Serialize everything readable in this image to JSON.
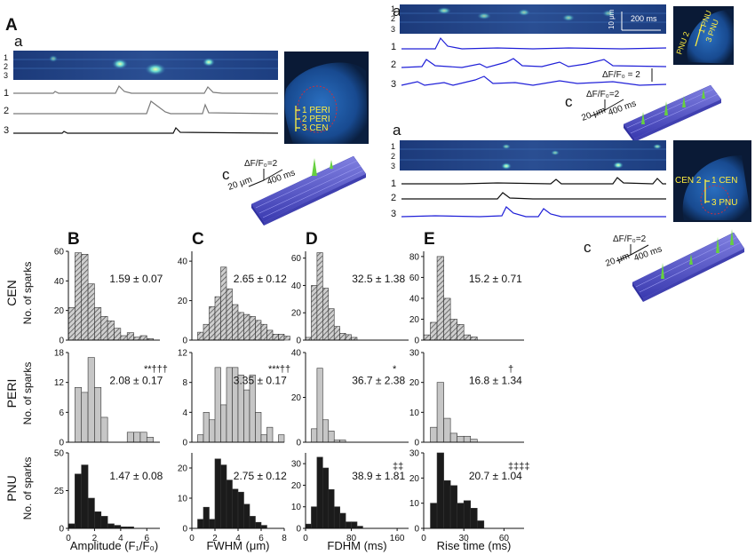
{
  "figure": {
    "panel_A": "A",
    "panel_B": "B",
    "panel_C": "C",
    "panel_D": "D",
    "panel_E": "E"
  },
  "cell_peri": {
    "sub_a": "a",
    "sub_b": "b",
    "sub_c": "c",
    "trace_labels": [
      "1",
      "2",
      "3"
    ],
    "line_labels": [
      "1",
      "2",
      "3"
    ],
    "region_labels": [
      "1 PERI",
      "2 PERI",
      "3 CEN"
    ],
    "scale_df": "ΔF/F₀=2",
    "scale_x": "400 ms",
    "scale_y": "20 μm"
  },
  "cell_pnu": {
    "sub_a": "a",
    "sub_b": "b",
    "sub_c": "c",
    "trace_labels": [
      "1",
      "2",
      "3"
    ],
    "line_labels": [
      "1",
      "2",
      "3"
    ],
    "scalebar_um": "10 μm",
    "scalebar_ms": "200 ms",
    "df_scale": "ΔF/F₀ = 2",
    "region_labels": [
      "1 PNU",
      "PNU 2",
      "3 PNU"
    ],
    "scale_df": "ΔF/F₀=2",
    "scale_x": "400 ms",
    "scale_y": "20 μm"
  },
  "cell_cen": {
    "sub_a": "a",
    "sub_b": "b",
    "sub_c": "c",
    "trace_labels": [
      "1",
      "2",
      "3"
    ],
    "line_labels": [
      "1",
      "2",
      "3"
    ],
    "region_labels": [
      "1 CEN",
      "CEN 2",
      "3 PNU"
    ],
    "scale_df": "ΔF/F₀=2",
    "scale_x": "400 ms",
    "scale_y": "20 μm"
  },
  "row_labels": [
    "CEN",
    "PERI",
    "PNU"
  ],
  "ylabel": "No. of sparks",
  "colors": {
    "CEN": "#9a9a9a",
    "PERI": "#c6c6c6",
    "PNU": "#1b1b1b",
    "trace_blue": "#2020d8",
    "trace_gray": "#808080"
  },
  "chart_data": [
    {
      "type": "bar",
      "panel": "B",
      "row": "CEN",
      "xlabel": "",
      "ylabel": "No. of sparks",
      "bin_width": 0.5,
      "bin_start": 0,
      "values": [
        22,
        59,
        58,
        38,
        22,
        16,
        13,
        8,
        3,
        5,
        2,
        3,
        1
      ],
      "xlim": [
        0,
        7
      ],
      "ylim": [
        0,
        60
      ],
      "yticks": [
        0,
        20,
        40,
        60
      ],
      "xticks": [],
      "hatched": true,
      "stat": "1.59 ± 0.07",
      "sig": ""
    },
    {
      "type": "bar",
      "panel": "C",
      "row": "CEN",
      "xlabel": "",
      "ylabel": "",
      "bin_width": 0.5,
      "bin_start": 0,
      "values": [
        0,
        4,
        8,
        17,
        22,
        37,
        26,
        18,
        14,
        13,
        12,
        10,
        8,
        5,
        3,
        3,
        2
      ],
      "xlim": [
        0,
        8
      ],
      "ylim": [
        0,
        45
      ],
      "yticks": [
        0,
        20,
        40
      ],
      "xticks": [],
      "hatched": true,
      "stat": "2.65 ± 0.12",
      "sig": ""
    },
    {
      "type": "bar",
      "panel": "D",
      "row": "CEN",
      "xlabel": "",
      "ylabel": "",
      "bin_width": 10,
      "bin_start": 0,
      "values": [
        2,
        40,
        64,
        38,
        23,
        10,
        5,
        4,
        2
      ],
      "xlim": [
        0,
        180
      ],
      "ylim": [
        0,
        65
      ],
      "yticks": [
        0,
        20,
        40,
        60
      ],
      "xticks": [],
      "hatched": true,
      "stat": "32.5 ± 1.38",
      "sig": ""
    },
    {
      "type": "bar",
      "panel": "E",
      "row": "CEN",
      "xlabel": "",
      "ylabel": "",
      "bin_width": 5,
      "bin_start": 0,
      "values": [
        5,
        17,
        80,
        40,
        20,
        15,
        5,
        3
      ],
      "xlim": [
        0,
        75
      ],
      "ylim": [
        0,
        85
      ],
      "yticks": [
        0,
        20,
        40,
        60,
        80
      ],
      "xticks": [],
      "hatched": true,
      "stat": "15.2 ± 0.71",
      "sig": ""
    },
    {
      "type": "bar",
      "panel": "B",
      "row": "PERI",
      "xlabel": "",
      "ylabel": "No. of sparks",
      "bin_width": 0.5,
      "bin_start": 0,
      "values": [
        0,
        11,
        10,
        17,
        11,
        5,
        0,
        0,
        0,
        2,
        2,
        2,
        1
      ],
      "xlim": [
        0,
        7
      ],
      "ylim": [
        0,
        18
      ],
      "yticks": [
        0,
        6,
        12,
        18
      ],
      "xticks": [],
      "hatched": false,
      "stat": "2.08 ± 0.17",
      "sig": "**†††"
    },
    {
      "type": "bar",
      "panel": "C",
      "row": "PERI",
      "xlabel": "",
      "ylabel": "",
      "bin_width": 0.5,
      "bin_start": 0,
      "values": [
        0,
        1,
        4,
        3,
        10,
        5,
        10,
        10,
        9,
        7,
        9,
        4,
        1,
        2,
        0,
        1
      ],
      "xlim": [
        0,
        8
      ],
      "ylim": [
        0,
        12
      ],
      "yticks": [
        0,
        4,
        8,
        12
      ],
      "xticks": [],
      "hatched": false,
      "stat": "3.35 ± 0.17",
      "sig": "***††"
    },
    {
      "type": "bar",
      "panel": "D",
      "row": "PERI",
      "xlabel": "",
      "ylabel": "",
      "bin_width": 10,
      "bin_start": 0,
      "values": [
        0,
        6,
        33,
        10,
        5,
        1,
        1
      ],
      "xlim": [
        0,
        180
      ],
      "ylim": [
        0,
        40
      ],
      "yticks": [
        0,
        20,
        40
      ],
      "xticks": [],
      "hatched": false,
      "stat": "36.7 ± 2.38",
      "sig": "*"
    },
    {
      "type": "bar",
      "panel": "E",
      "row": "PERI",
      "xlabel": "",
      "ylabel": "",
      "bin_width": 5,
      "bin_start": 0,
      "values": [
        0,
        5,
        20,
        8,
        3,
        2,
        2,
        1
      ],
      "xlim": [
        0,
        75
      ],
      "ylim": [
        0,
        30
      ],
      "yticks": [
        0,
        10,
        20,
        30
      ],
      "xticks": [],
      "hatched": false,
      "stat": "16.8 ± 1.34",
      "sig": "†"
    },
    {
      "type": "bar",
      "panel": "B",
      "row": "PNU",
      "xlabel": "Amplitude (F₁/F₀)",
      "ylabel": "No. of sparks",
      "bin_width": 0.5,
      "bin_start": 0,
      "values": [
        3,
        36,
        42,
        20,
        11,
        8,
        3,
        2,
        1,
        1
      ],
      "xlim": [
        0,
        7
      ],
      "ylim": [
        0,
        50
      ],
      "yticks": [
        0,
        25,
        50
      ],
      "xticks": [
        0,
        2,
        4,
        6
      ],
      "hatched": false,
      "stat": "1.47 ± 0.08",
      "sig": ""
    },
    {
      "type": "bar",
      "panel": "C",
      "row": "PNU",
      "xlabel": "FWHM (μm)",
      "ylabel": "",
      "bin_width": 0.5,
      "bin_start": 0,
      "values": [
        0,
        3,
        7,
        3,
        23,
        21,
        16,
        13,
        12,
        8,
        4,
        2,
        1
      ],
      "xlim": [
        0,
        8
      ],
      "ylim": [
        0,
        25
      ],
      "yticks": [
        0,
        10,
        20
      ],
      "xticks": [
        0,
        2,
        4,
        6,
        8
      ],
      "hatched": false,
      "stat": "2.75 ± 0.12",
      "sig": ""
    },
    {
      "type": "bar",
      "panel": "D",
      "row": "PNU",
      "xlabel": "FDHM (ms)",
      "ylabel": "",
      "bin_width": 10,
      "bin_start": 0,
      "values": [
        2,
        10,
        33,
        28,
        18,
        10,
        7,
        3,
        3,
        1
      ],
      "xlim": [
        0,
        180
      ],
      "ylim": [
        0,
        35
      ],
      "yticks": [
        0,
        10,
        20,
        30
      ],
      "xticks": [
        0,
        80,
        160
      ],
      "hatched": false,
      "stat": "38.9 ± 1.81",
      "sig": "‡‡"
    },
    {
      "type": "bar",
      "panel": "E",
      "row": "PNU",
      "xlabel": "Rise time (ms)",
      "ylabel": "",
      "bin_width": 5,
      "bin_start": 0,
      "values": [
        0,
        10,
        30,
        19,
        17,
        10,
        11,
        8,
        3
      ],
      "xlim": [
        0,
        75
      ],
      "ylim": [
        0,
        30
      ],
      "yticks": [
        0,
        10,
        20,
        30
      ],
      "xticks": [
        0,
        30,
        60
      ],
      "hatched": false,
      "stat": "20.7 ± 1.04",
      "sig": "‡‡‡‡"
    }
  ]
}
